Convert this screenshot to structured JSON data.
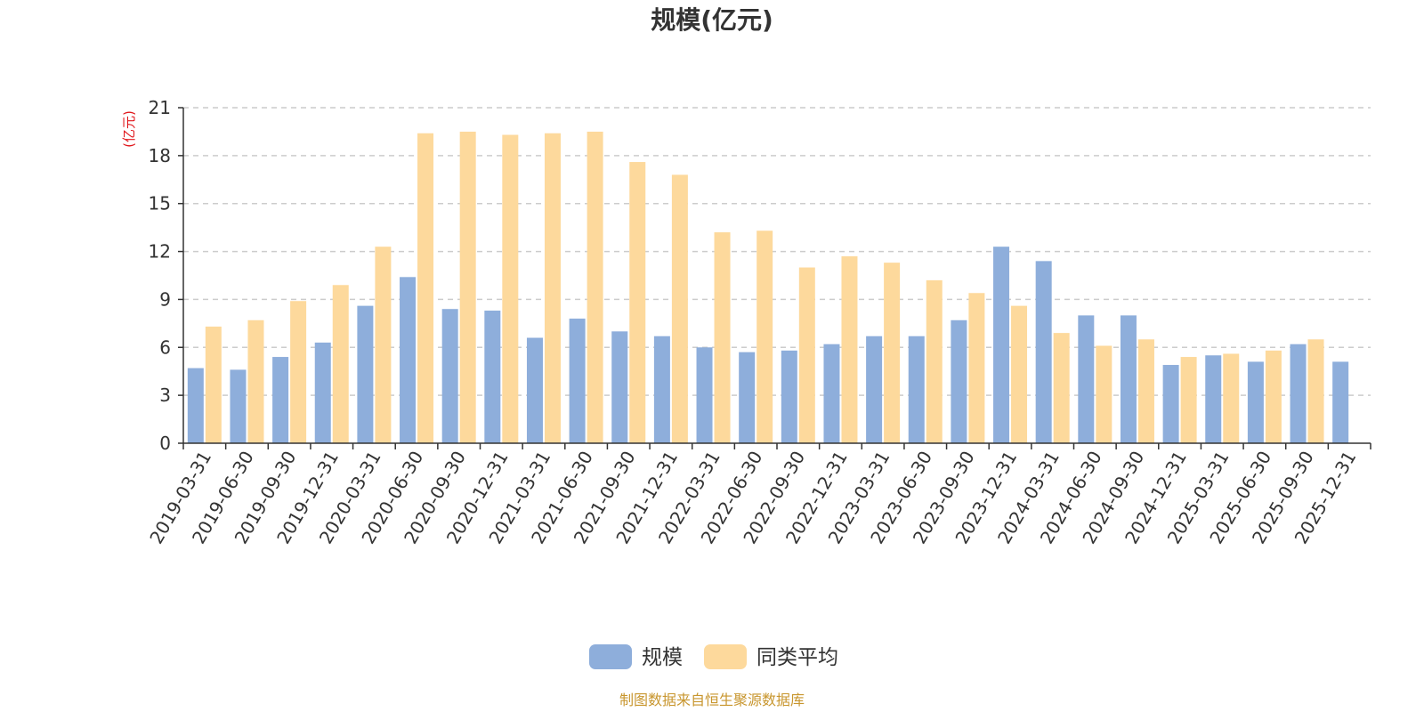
{
  "chart_data": {
    "type": "bar",
    "title": "规模(亿元)",
    "y_unit_label": "(亿元)",
    "ylim": [
      0,
      21
    ],
    "y_ticks": [
      0,
      3,
      6,
      9,
      12,
      15,
      18,
      21
    ],
    "grid": true,
    "legend_position": "bottom-center",
    "categories": [
      "2019-03-31",
      "2019-06-30",
      "2019-09-30",
      "2019-12-31",
      "2020-03-31",
      "2020-06-30",
      "2020-09-30",
      "2020-12-31",
      "2021-03-31",
      "2021-06-30",
      "2021-09-30",
      "2021-12-31",
      "2022-03-31",
      "2022-06-30",
      "2022-09-30",
      "2022-12-31",
      "2023-03-31",
      "2023-06-30",
      "2023-09-30",
      "2023-12-31",
      "2024-03-31",
      "2024-06-30",
      "2024-09-30",
      "2024-12-31",
      "2025-03-31",
      "2025-06-30",
      "2025-09-30",
      "2025-12-31"
    ],
    "series": [
      {
        "name": "规模",
        "color": "#8eaedb",
        "values": [
          4.7,
          4.6,
          5.4,
          6.3,
          8.6,
          10.4,
          8.4,
          8.3,
          6.6,
          7.8,
          7.0,
          6.7,
          6.0,
          5.7,
          5.8,
          6.2,
          6.7,
          6.7,
          7.7,
          12.3,
          11.4,
          8.0,
          8.0,
          4.9,
          5.5,
          5.1,
          6.2,
          5.1
        ]
      },
      {
        "name": "同类平均",
        "color": "#fdd99c",
        "values": [
          7.3,
          7.7,
          8.9,
          9.9,
          12.3,
          19.4,
          19.5,
          19.3,
          19.4,
          19.5,
          17.6,
          16.8,
          13.2,
          13.3,
          11.0,
          11.7,
          11.3,
          10.2,
          9.4,
          8.6,
          6.9,
          6.1,
          6.5,
          5.4,
          5.6,
          5.8,
          6.5,
          null
        ]
      }
    ]
  },
  "source_note": "制图数据来自恒生聚源数据库"
}
